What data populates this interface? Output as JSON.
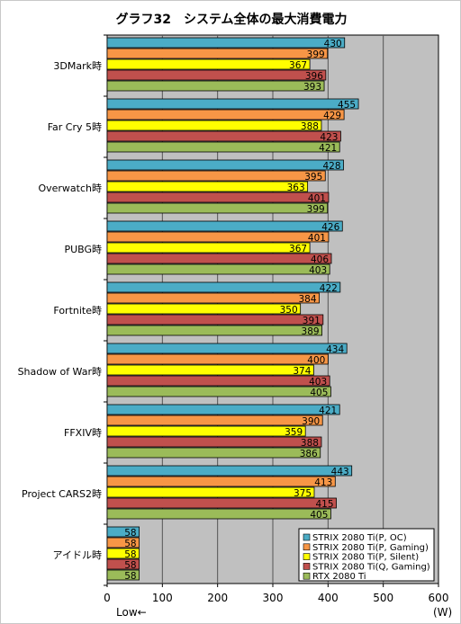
{
  "chart_data": {
    "type": "bar",
    "orientation": "horizontal",
    "title": "グラフ32　システム全体の最大消費電力",
    "categories": [
      "3DMark時",
      "Far Cry 5時",
      "Overwatch時",
      "PUBG時",
      "Fortnite時",
      "Shadow of War時",
      "FFXIV時",
      "Project CARS2時",
      "アイドル時"
    ],
    "series": [
      {
        "name": "STRIX 2080 Ti(P, OC)",
        "color": "#4bacc6",
        "values": [
          430,
          455,
          428,
          426,
          422,
          434,
          421,
          443,
          58
        ]
      },
      {
        "name": "STRIX 2080 Ti(P, Gaming)",
        "color": "#f79646",
        "values": [
          399,
          429,
          395,
          401,
          384,
          400,
          390,
          413,
          58
        ]
      },
      {
        "name": "STRIX 2080 Ti(P, Silent)",
        "color": "#ffff00",
        "values": [
          367,
          388,
          363,
          367,
          350,
          374,
          359,
          375,
          58
        ]
      },
      {
        "name": "STRIX 2080 Ti(Q, Gaming)",
        "color": "#c0504d",
        "values": [
          396,
          423,
          401,
          406,
          391,
          403,
          388,
          415,
          58
        ]
      },
      {
        "name": "RTX 2080 Ti",
        "color": "#9bbb59",
        "values": [
          393,
          421,
          399,
          403,
          389,
          405,
          386,
          405,
          58
        ]
      }
    ],
    "xlim": [
      0,
      600
    ],
    "xticks": [
      "0",
      "100",
      "200",
      "300",
      "400",
      "500",
      "600"
    ],
    "xlabel_left": "Low←",
    "xlabel_right": "(W)",
    "grid": true,
    "legend_position": "bottom-right",
    "plot_background": "#c0c0c0"
  }
}
